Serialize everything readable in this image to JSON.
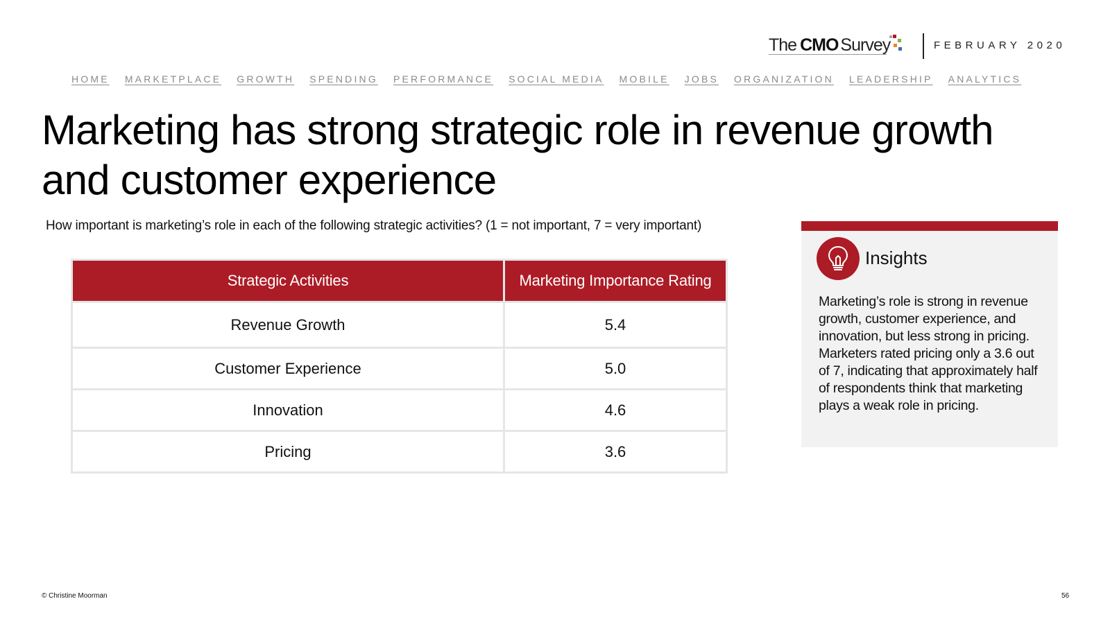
{
  "brand": {
    "the": "The",
    "cmo": "CMO",
    "survey": "Survey",
    "dot_colors": [
      "#ac1c26",
      "#8ab04a",
      "#e58a2c",
      "#3a6fb0",
      "#9a9a9a"
    ],
    "date": "FEBRUARY 2020"
  },
  "nav": {
    "items": [
      "HOME",
      "MARKETPLACE",
      "GROWTH",
      "SPENDING",
      "PERFORMANCE",
      "SOCIAL MEDIA",
      "MOBILE",
      "JOBS",
      "ORGANIZATION",
      "LEADERSHIP",
      "ANALYTICS"
    ]
  },
  "page": {
    "title": "Marketing has strong strategic role in revenue growth and customer experience",
    "question": "How important is marketing’s role in each of the following strategic activities? (1 = not important, 7 = very important)"
  },
  "table": {
    "headers": [
      "Strategic Activities",
      "Marketing Importance Rating"
    ],
    "rows": [
      {
        "activity": "Revenue Growth",
        "rating": "5.4"
      },
      {
        "activity": "Customer Experience",
        "rating": "5.0"
      },
      {
        "activity": "Innovation",
        "rating": "4.6"
      },
      {
        "activity": "Pricing",
        "rating": "3.6"
      }
    ]
  },
  "insights": {
    "icon": "lightbulb-icon",
    "title": "Insights",
    "body": "Marketing’s role is strong in revenue growth, customer experience, and innovation, but less strong in pricing. Marketers rated pricing only a 3.6 out of 7, indicating that approximately half of respondents think that marketing plays a weak role in pricing."
  },
  "footer": {
    "copyright": "© Christine Moorman",
    "page_number": "56"
  },
  "colors": {
    "accent": "#ac1c26",
    "panel_bg": "#f2f2f2",
    "nav_text": "#8a8a8a"
  }
}
